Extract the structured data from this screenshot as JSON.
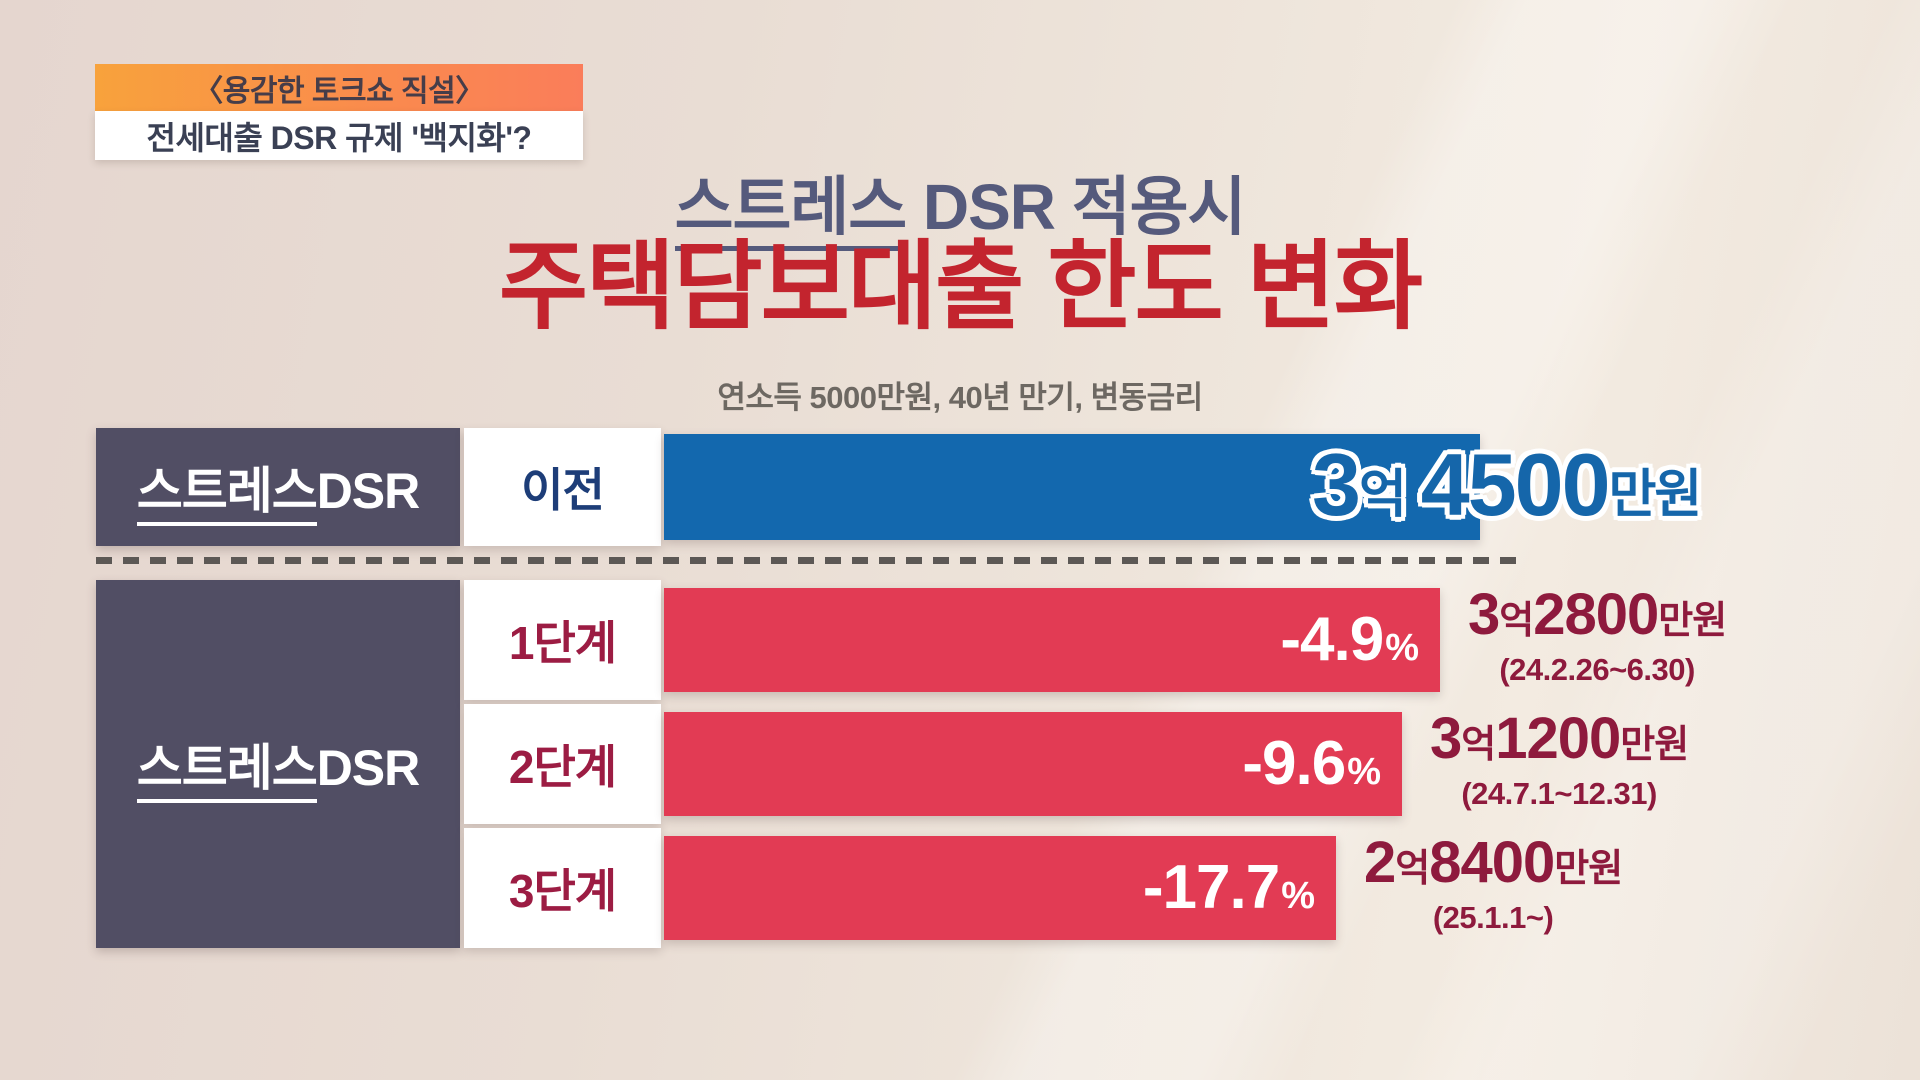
{
  "program_badge": {
    "title": "〈용감한 토크쇼 직설〉",
    "topic": "전세대출 DSR 규제 '백지화'?"
  },
  "header": {
    "title_line1_em": "스트레스",
    "title_line1_rest": " DSR 적용시",
    "title_line2": "주택담보대출 한도 변화",
    "assumptions": "연소득 5000만원, 40년 만기, 변동금리"
  },
  "chart_data": {
    "type": "bar",
    "title": "스트레스 DSR 적용시 주택담보대출 한도 변화",
    "subtitle": "연소득 5000만원, 40년 만기, 변동금리",
    "unit": "만원",
    "orientation": "horizontal",
    "categories": [
      "이전",
      "1단계",
      "2단계",
      "3단계"
    ],
    "values_manwon": [
      34500,
      32800,
      31200,
      28400
    ],
    "pct_change_vs_before": [
      0,
      -4.9,
      -9.6,
      -17.7
    ],
    "periods": [
      "",
      "24.2.26~6.30",
      "24.7.1~12.31",
      "25.1.1~"
    ],
    "bar_colors": {
      "before": "#1368ae",
      "stages": "#e23b54"
    },
    "baseline_row": {
      "group_em": "스트레스",
      "group_rest": "DSR",
      "stage": "이전",
      "amount": {
        "eok_num": "3",
        "eok_unit": "억",
        "main": "4500",
        "unit": "만원"
      }
    },
    "stage_group": {
      "group_em": "스트레스",
      "group_rest": "DSR"
    },
    "stage_rows": [
      {
        "stage": "1단계",
        "pct": "-4.9",
        "pct_unit": "%",
        "amount": {
          "eok_num": "3",
          "eok_unit": "억",
          "main": "2800",
          "unit": "만원"
        },
        "period": "(24.2.26~6.30)"
      },
      {
        "stage": "2단계",
        "pct": "-9.6",
        "pct_unit": "%",
        "amount": {
          "eok_num": "3",
          "eok_unit": "억",
          "main": "1200",
          "unit": "만원"
        },
        "period": "(24.7.1~12.31)"
      },
      {
        "stage": "3단계",
        "pct": "-17.7",
        "pct_unit": "%",
        "amount": {
          "eok_num": "2",
          "eok_unit": "억",
          "main": "8400",
          "unit": "만원"
        },
        "period": "(25.1.1~)"
      }
    ]
  }
}
